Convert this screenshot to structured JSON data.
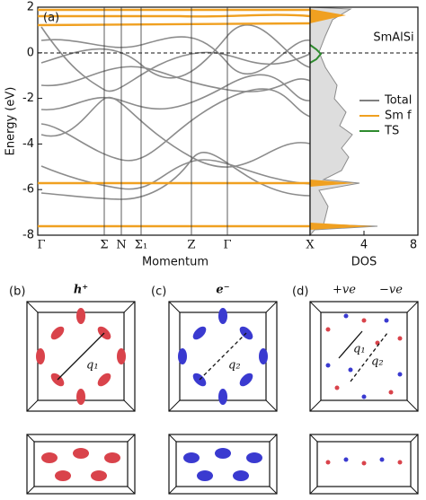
{
  "panel_a": {
    "label": "(a)",
    "ylabel": "Energy (eV)",
    "ylim": [
      -8,
      2
    ],
    "yticks": [
      -8,
      -6,
      -4,
      -2,
      0,
      2
    ],
    "kpoints": [
      "Γ",
      "Σ",
      "N",
      "Σ₁",
      "Z",
      "Γ",
      "X"
    ],
    "xlabel": "Momentum",
    "dos": {
      "xlabel": "DOS",
      "xlim": [
        0,
        8
      ],
      "xticks": [
        4,
        8
      ],
      "material": "SmAlSi",
      "legend": [
        {
          "name": "Total",
          "color": "#808080"
        },
        {
          "name": "Sm f",
          "color": "#f0a020"
        },
        {
          "name": "TS",
          "color": "#2e8b2e"
        }
      ]
    }
  },
  "panel_b": {
    "label": "(b)",
    "carrier": "h⁺",
    "vector": "q₁"
  },
  "panel_c": {
    "label": "(c)",
    "carrier": "e⁻",
    "vector": "q₂"
  },
  "panel_d": {
    "label": "(d)",
    "positive": "+ve",
    "negative": "−ve",
    "vectors": [
      "q₁",
      "q₂"
    ]
  }
}
